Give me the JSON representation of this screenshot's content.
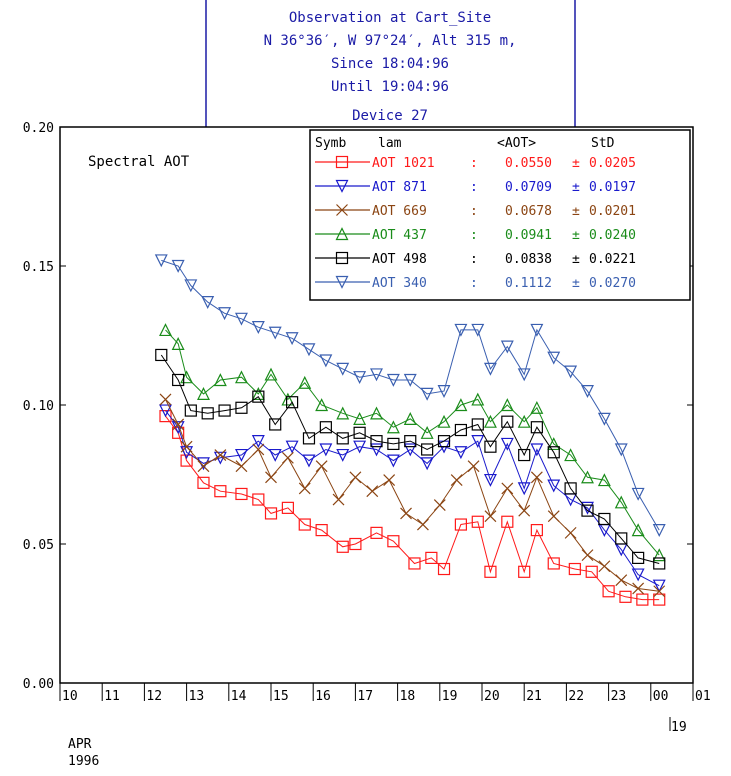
{
  "header": {
    "lines": [
      "Observation at Cart_Site",
      "N 36°36′, W 97°24′, Alt 315 m,",
      "Since 18:04:96",
      "Until 19:04:96",
      "Device 27"
    ],
    "color": "#1a1aa6"
  },
  "chart_data": {
    "type": "line",
    "title": "Spectral AOT",
    "xlabel": "",
    "ylabel": "",
    "ylim": [
      0.0,
      0.2
    ],
    "xlim": [
      10,
      25
    ],
    "y_ticks": [
      "0.00",
      "0.05",
      "0.10",
      "0.15",
      "0.20"
    ],
    "x_ticks": [
      "10",
      "11",
      "12",
      "13",
      "14",
      "15",
      "16",
      "17",
      "18",
      "19",
      "20",
      "21",
      "22",
      "23",
      "00",
      "01"
    ],
    "x_tick_values": [
      10,
      11,
      12,
      13,
      14,
      15,
      16,
      17,
      18,
      19,
      20,
      21,
      22,
      23,
      24,
      25
    ],
    "x_sublabel": "19",
    "date_label": [
      "APR",
      "1996"
    ],
    "legend": {
      "header": [
        "Symb",
        "lam",
        "<AOT>",
        "StD"
      ],
      "placement": "top-right",
      "entries": [
        {
          "label": "AOT 1021",
          "mean": "0.0550",
          "std": "0.0205"
        },
        {
          "label": "AOT 871",
          "mean": "0.0709",
          "std": "0.0197"
        },
        {
          "label": "AOT 669",
          "mean": "0.0678",
          "std": "0.0201"
        },
        {
          "label": "AOT 437",
          "mean": "0.0941",
          "std": "0.0240"
        },
        {
          "label": "AOT 498",
          "mean": "0.0838",
          "std": "0.0221"
        },
        {
          "label": "AOT 340",
          "mean": "0.1112",
          "std": "0.0270"
        }
      ]
    },
    "series": [
      {
        "name": "AOT 1021",
        "color": "#ff1a1a",
        "marker": "square",
        "points": [
          [
            12.5,
            0.096
          ],
          [
            12.8,
            0.09
          ],
          [
            13.0,
            0.08
          ],
          [
            13.4,
            0.072
          ],
          [
            13.8,
            0.069
          ],
          [
            14.3,
            0.068
          ],
          [
            14.7,
            0.066
          ],
          [
            15.0,
            0.061
          ],
          [
            15.4,
            0.063
          ],
          [
            15.8,
            0.057
          ],
          [
            16.2,
            0.055
          ],
          [
            16.7,
            0.049
          ],
          [
            17.0,
            0.05
          ],
          [
            17.5,
            0.054
          ],
          [
            17.9,
            0.051
          ],
          [
            18.4,
            0.043
          ],
          [
            18.8,
            0.045
          ],
          [
            19.1,
            0.041
          ],
          [
            19.5,
            0.057
          ],
          [
            19.9,
            0.058
          ],
          [
            20.2,
            0.04
          ],
          [
            20.6,
            0.058
          ],
          [
            21.0,
            0.04
          ],
          [
            21.3,
            0.055
          ],
          [
            21.7,
            0.043
          ],
          [
            22.2,
            0.041
          ],
          [
            22.6,
            0.04
          ],
          [
            23.0,
            0.033
          ],
          [
            23.4,
            0.031
          ],
          [
            23.8,
            0.03
          ],
          [
            24.2,
            0.03
          ]
        ]
      },
      {
        "name": "AOT 871",
        "color": "#1a1acc",
        "marker": "triangle-down",
        "points": [
          [
            12.5,
            0.098
          ],
          [
            12.8,
            0.092
          ],
          [
            13.0,
            0.083
          ],
          [
            13.4,
            0.079
          ],
          [
            13.8,
            0.081
          ],
          [
            14.3,
            0.082
          ],
          [
            14.7,
            0.087
          ],
          [
            15.1,
            0.082
          ],
          [
            15.5,
            0.085
          ],
          [
            15.9,
            0.08
          ],
          [
            16.3,
            0.084
          ],
          [
            16.7,
            0.082
          ],
          [
            17.1,
            0.085
          ],
          [
            17.5,
            0.084
          ],
          [
            17.9,
            0.08
          ],
          [
            18.3,
            0.084
          ],
          [
            18.7,
            0.079
          ],
          [
            19.1,
            0.085
          ],
          [
            19.5,
            0.083
          ],
          [
            19.9,
            0.087
          ],
          [
            20.2,
            0.073
          ],
          [
            20.6,
            0.086
          ],
          [
            21.0,
            0.07
          ],
          [
            21.3,
            0.084
          ],
          [
            21.7,
            0.071
          ],
          [
            22.1,
            0.066
          ],
          [
            22.5,
            0.063
          ],
          [
            22.9,
            0.055
          ],
          [
            23.3,
            0.048
          ],
          [
            23.7,
            0.039
          ],
          [
            24.2,
            0.035
          ]
        ]
      },
      {
        "name": "AOT 669",
        "color": "#8b4513",
        "marker": "x",
        "points": [
          [
            12.5,
            0.102
          ],
          [
            12.8,
            0.093
          ],
          [
            13.0,
            0.085
          ],
          [
            13.4,
            0.078
          ],
          [
            13.8,
            0.082
          ],
          [
            14.3,
            0.078
          ],
          [
            14.7,
            0.084
          ],
          [
            15.0,
            0.074
          ],
          [
            15.4,
            0.081
          ],
          [
            15.8,
            0.07
          ],
          [
            16.2,
            0.078
          ],
          [
            16.6,
            0.066
          ],
          [
            17.0,
            0.074
          ],
          [
            17.4,
            0.069
          ],
          [
            17.8,
            0.073
          ],
          [
            18.2,
            0.061
          ],
          [
            18.6,
            0.057
          ],
          [
            19.0,
            0.064
          ],
          [
            19.4,
            0.073
          ],
          [
            19.8,
            0.078
          ],
          [
            20.2,
            0.06
          ],
          [
            20.6,
            0.07
          ],
          [
            21.0,
            0.062
          ],
          [
            21.3,
            0.074
          ],
          [
            21.7,
            0.06
          ],
          [
            22.1,
            0.054
          ],
          [
            22.5,
            0.046
          ],
          [
            22.9,
            0.042
          ],
          [
            23.3,
            0.037
          ],
          [
            23.7,
            0.034
          ],
          [
            24.2,
            0.033
          ]
        ]
      },
      {
        "name": "AOT 437",
        "color": "#1a8c1a",
        "marker": "triangle-up",
        "points": [
          [
            12.5,
            0.127
          ],
          [
            12.8,
            0.122
          ],
          [
            13.0,
            0.11
          ],
          [
            13.4,
            0.104
          ],
          [
            13.8,
            0.109
          ],
          [
            14.3,
            0.11
          ],
          [
            14.7,
            0.104
          ],
          [
            15.0,
            0.111
          ],
          [
            15.4,
            0.102
          ],
          [
            15.8,
            0.108
          ],
          [
            16.2,
            0.1
          ],
          [
            16.7,
            0.097
          ],
          [
            17.1,
            0.095
          ],
          [
            17.5,
            0.097
          ],
          [
            17.9,
            0.092
          ],
          [
            18.3,
            0.095
          ],
          [
            18.7,
            0.09
          ],
          [
            19.1,
            0.094
          ],
          [
            19.5,
            0.1
          ],
          [
            19.9,
            0.102
          ],
          [
            20.2,
            0.094
          ],
          [
            20.6,
            0.1
          ],
          [
            21.0,
            0.094
          ],
          [
            21.3,
            0.099
          ],
          [
            21.7,
            0.086
          ],
          [
            22.1,
            0.082
          ],
          [
            22.5,
            0.074
          ],
          [
            22.9,
            0.073
          ],
          [
            23.3,
            0.065
          ],
          [
            23.7,
            0.055
          ],
          [
            24.2,
            0.046
          ]
        ]
      },
      {
        "name": "AOT 498",
        "color": "#000000",
        "marker": "square",
        "points": [
          [
            12.4,
            0.118
          ],
          [
            12.8,
            0.109
          ],
          [
            13.1,
            0.098
          ],
          [
            13.5,
            0.097
          ],
          [
            13.9,
            0.098
          ],
          [
            14.3,
            0.099
          ],
          [
            14.7,
            0.103
          ],
          [
            15.1,
            0.093
          ],
          [
            15.5,
            0.101
          ],
          [
            15.9,
            0.088
          ],
          [
            16.3,
            0.092
          ],
          [
            16.7,
            0.088
          ],
          [
            17.1,
            0.09
          ],
          [
            17.5,
            0.087
          ],
          [
            17.9,
            0.086
          ],
          [
            18.3,
            0.087
          ],
          [
            18.7,
            0.084
          ],
          [
            19.1,
            0.087
          ],
          [
            19.5,
            0.091
          ],
          [
            19.9,
            0.093
          ],
          [
            20.2,
            0.085
          ],
          [
            20.6,
            0.094
          ],
          [
            21.0,
            0.082
          ],
          [
            21.3,
            0.092
          ],
          [
            21.7,
            0.083
          ],
          [
            22.1,
            0.07
          ],
          [
            22.5,
            0.062
          ],
          [
            22.9,
            0.059
          ],
          [
            23.3,
            0.052
          ],
          [
            23.7,
            0.045
          ],
          [
            24.2,
            0.043
          ]
        ]
      },
      {
        "name": "AOT 340",
        "color": "#3a5fb0",
        "marker": "triangle-down",
        "points": [
          [
            12.4,
            0.152
          ],
          [
            12.8,
            0.15
          ],
          [
            13.1,
            0.143
          ],
          [
            13.5,
            0.137
          ],
          [
            13.9,
            0.133
          ],
          [
            14.3,
            0.131
          ],
          [
            14.7,
            0.128
          ],
          [
            15.1,
            0.126
          ],
          [
            15.5,
            0.124
          ],
          [
            15.9,
            0.12
          ],
          [
            16.3,
            0.116
          ],
          [
            16.7,
            0.113
          ],
          [
            17.1,
            0.11
          ],
          [
            17.5,
            0.111
          ],
          [
            17.9,
            0.109
          ],
          [
            18.3,
            0.109
          ],
          [
            18.7,
            0.104
          ],
          [
            19.1,
            0.105
          ],
          [
            19.5,
            0.127
          ],
          [
            19.9,
            0.127
          ],
          [
            20.2,
            0.113
          ],
          [
            20.6,
            0.121
          ],
          [
            21.0,
            0.111
          ],
          [
            21.3,
            0.127
          ],
          [
            21.7,
            0.117
          ],
          [
            22.1,
            0.112
          ],
          [
            22.5,
            0.105
          ],
          [
            22.9,
            0.095
          ],
          [
            23.3,
            0.084
          ],
          [
            23.7,
            0.068
          ],
          [
            24.2,
            0.055
          ]
        ]
      }
    ]
  }
}
